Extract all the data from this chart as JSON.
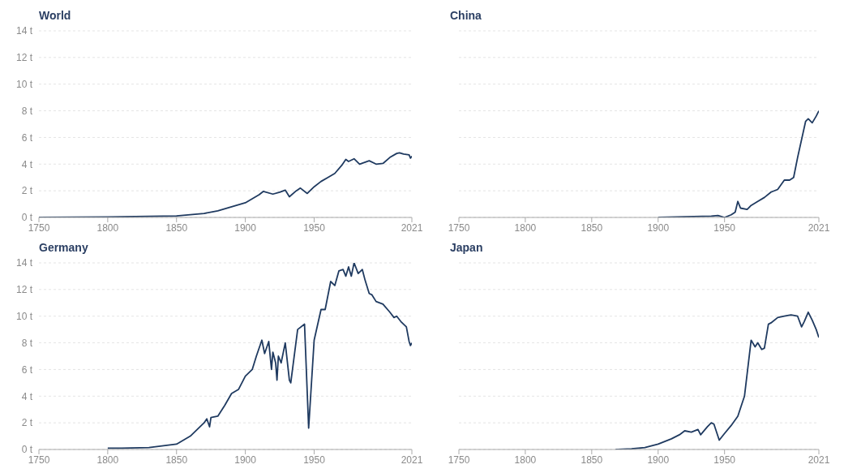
{
  "chart_data": [
    {
      "type": "line",
      "title": "World",
      "color": "#1f3a60",
      "xlim": [
        1750,
        2021
      ],
      "xticks": [
        1750,
        1800,
        1850,
        1900,
        1950,
        2021
      ],
      "ylim": [
        0,
        14
      ],
      "yticks": [
        {
          "value": 0,
          "label": "0 t"
        },
        {
          "value": 2,
          "label": "2 t"
        },
        {
          "value": 4,
          "label": "4 t"
        },
        {
          "value": 6,
          "label": "6 t"
        },
        {
          "value": 8,
          "label": "8 t"
        },
        {
          "value": 10,
          "label": "10 t"
        },
        {
          "value": 12,
          "label": "12 t"
        },
        {
          "value": 14,
          "label": "14 t"
        }
      ],
      "grid": "y",
      "x": [
        1750,
        1800,
        1850,
        1860,
        1870,
        1880,
        1890,
        1900,
        1910,
        1913,
        1920,
        1925,
        1929,
        1932,
        1937,
        1940,
        1945,
        1950,
        1955,
        1960,
        1965,
        1970,
        1973,
        1975,
        1979,
        1983,
        1990,
        1995,
        2000,
        2005,
        2010,
        2012,
        2015,
        2019,
        2020,
        2021
      ],
      "values": [
        0.01,
        0.03,
        0.12,
        0.2,
        0.3,
        0.5,
        0.8,
        1.1,
        1.7,
        1.95,
        1.75,
        1.9,
        2.05,
        1.55,
        2.0,
        2.2,
        1.8,
        2.3,
        2.7,
        3.0,
        3.3,
        3.9,
        4.35,
        4.2,
        4.4,
        4.0,
        4.25,
        4.0,
        4.05,
        4.5,
        4.8,
        4.85,
        4.75,
        4.7,
        4.45,
        4.6
      ]
    },
    {
      "type": "line",
      "title": "China",
      "color": "#1f3a60",
      "xlim": [
        1750,
        2021
      ],
      "xticks": [
        1750,
        1800,
        1850,
        1900,
        1950,
        2021
      ],
      "ylim": [
        0,
        14
      ],
      "yticks": [
        0,
        2,
        4,
        6,
        8,
        10,
        12,
        14
      ],
      "grid": "y",
      "tick_labels": "x",
      "x": [
        1900,
        1940,
        1945,
        1950,
        1955,
        1958,
        1960,
        1962,
        1967,
        1970,
        1975,
        1980,
        1985,
        1990,
        1995,
        1999,
        2002,
        2005,
        2011,
        2013,
        2016,
        2019,
        2021
      ],
      "values": [
        0.01,
        0.1,
        0.15,
        0.0,
        0.2,
        0.4,
        1.2,
        0.7,
        0.6,
        0.9,
        1.2,
        1.5,
        1.9,
        2.1,
        2.8,
        2.8,
        3.0,
        4.5,
        7.2,
        7.4,
        7.1,
        7.6,
        8.0
      ]
    },
    {
      "type": "line",
      "title": "Germany",
      "color": "#1f3a60",
      "xlim": [
        1750,
        2021
      ],
      "xticks": [
        1750,
        1800,
        1850,
        1900,
        1950,
        2021
      ],
      "ylim": [
        0,
        14
      ],
      "yticks": [
        {
          "value": 0,
          "label": "0 t"
        },
        {
          "value": 2,
          "label": "2 t"
        },
        {
          "value": 4,
          "label": "4 t"
        },
        {
          "value": 6,
          "label": "6 t"
        },
        {
          "value": 8,
          "label": "8 t"
        },
        {
          "value": 10,
          "label": "10 t"
        },
        {
          "value": 12,
          "label": "12 t"
        },
        {
          "value": 14,
          "label": "14 t"
        }
      ],
      "grid": "y",
      "x": [
        1800,
        1810,
        1830,
        1850,
        1860,
        1870,
        1872,
        1874,
        1875,
        1880,
        1885,
        1890,
        1895,
        1900,
        1905,
        1908,
        1912,
        1914,
        1917,
        1919,
        1920,
        1922,
        1923,
        1924,
        1926,
        1929,
        1932,
        1933,
        1938,
        1943,
        1946,
        1950,
        1955,
        1958,
        1962,
        1965,
        1968,
        1971,
        1973,
        1975,
        1977,
        1979,
        1982,
        1985,
        1987,
        1990,
        1992,
        1995,
        2000,
        2005,
        2008,
        2010,
        2013,
        2017,
        2019,
        2020,
        2021
      ],
      "values": [
        0.1,
        0.1,
        0.15,
        0.4,
        1.0,
        2.0,
        2.3,
        1.7,
        2.4,
        2.5,
        3.3,
        4.2,
        4.5,
        5.5,
        6.0,
        7.0,
        8.2,
        7.2,
        8.1,
        6.0,
        7.3,
        6.5,
        5.2,
        7.0,
        6.5,
        8.0,
        5.2,
        5.0,
        9.0,
        9.4,
        1.6,
        8.2,
        10.5,
        10.5,
        12.6,
        12.3,
        13.4,
        13.5,
        13.0,
        13.7,
        13.0,
        14.0,
        13.2,
        13.5,
        12.7,
        11.7,
        11.6,
        11.1,
        10.9,
        10.3,
        9.9,
        10.0,
        9.6,
        9.2,
        8.1,
        7.8,
        8.0
      ]
    },
    {
      "type": "line",
      "title": "Japan",
      "color": "#1f3a60",
      "xlim": [
        1750,
        2021
      ],
      "xticks": [
        1750,
        1800,
        1850,
        1900,
        1950,
        2021
      ],
      "ylim": [
        0,
        14
      ],
      "yticks": [
        0,
        2,
        4,
        6,
        8,
        10,
        12,
        14
      ],
      "grid": "y",
      "tick_labels": "x",
      "x": [
        1868,
        1880,
        1890,
        1900,
        1910,
        1916,
        1920,
        1925,
        1930,
        1932,
        1937,
        1940,
        1942,
        1946,
        1950,
        1955,
        1960,
        1965,
        1970,
        1973,
        1975,
        1978,
        1980,
        1983,
        1985,
        1990,
        1995,
        2000,
        2005,
        2008,
        2010,
        2013,
        2016,
        2019,
        2021
      ],
      "values": [
        0.0,
        0.05,
        0.15,
        0.4,
        0.8,
        1.1,
        1.4,
        1.3,
        1.5,
        1.1,
        1.7,
        2.0,
        1.9,
        0.7,
        1.2,
        1.8,
        2.5,
        4.0,
        8.2,
        7.7,
        8.0,
        7.5,
        7.6,
        9.4,
        9.5,
        9.9,
        10.0,
        10.1,
        10.0,
        9.2,
        9.6,
        10.3,
        9.7,
        9.0,
        8.4
      ]
    }
  ]
}
